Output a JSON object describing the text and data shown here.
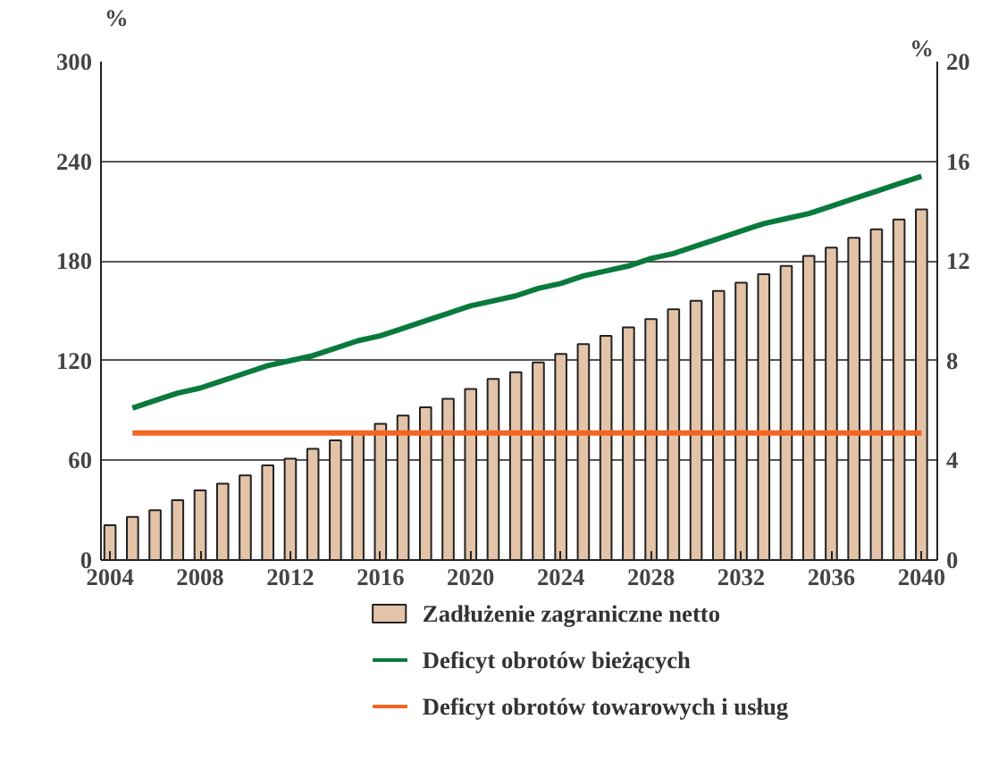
{
  "chart_data": {
    "type": "bar",
    "ylabel": "%",
    "y2label": "%",
    "x": [
      2004,
      2005,
      2006,
      2007,
      2008,
      2009,
      2010,
      2011,
      2012,
      2013,
      2014,
      2015,
      2016,
      2017,
      2018,
      2019,
      2020,
      2021,
      2022,
      2023,
      2024,
      2025,
      2026,
      2027,
      2028,
      2029,
      2030,
      2031,
      2032,
      2033,
      2034,
      2035,
      2036,
      2037,
      2038,
      2039,
      2040
    ],
    "xlim": [
      2003.6,
      2040.7
    ],
    "xticks": [
      2004,
      2008,
      2012,
      2016,
      2020,
      2024,
      2028,
      2032,
      2036,
      2040
    ],
    "ylim": [
      0,
      300
    ],
    "yticks": [
      0,
      60,
      120,
      180,
      240,
      300
    ],
    "y2lim": [
      0,
      20
    ],
    "y2ticks": [
      0,
      4,
      8,
      12,
      16,
      20
    ],
    "grid": "y",
    "legend": "bottom",
    "series": [
      {
        "name": "Zadłużenie zagraniczne netto",
        "color": "#e3c4a8",
        "values": [
          21,
          26,
          30,
          36,
          42,
          46,
          51,
          57,
          61,
          67,
          72,
          77,
          82,
          87,
          92,
          97,
          103,
          109,
          113,
          119,
          124,
          130,
          135,
          140,
          145,
          151,
          156,
          162,
          167,
          172,
          177,
          183,
          188,
          194,
          199,
          205,
          211
        ]
      },
      {
        "type": "line",
        "axis": "y2",
        "name": "Deficyt obrotów bieżących",
        "color": "#0a7a3c",
        "x": [
          2005,
          2006,
          2007,
          2008,
          2009,
          2010,
          2011,
          2012,
          2013,
          2014,
          2015,
          2016,
          2017,
          2018,
          2019,
          2020,
          2021,
          2022,
          2023,
          2024,
          2025,
          2026,
          2027,
          2028,
          2029,
          2030,
          2031,
          2032,
          2033,
          2034,
          2035,
          2036,
          2037,
          2038,
          2039,
          2040
        ],
        "values": [
          6.1,
          6.4,
          6.7,
          6.9,
          7.2,
          7.5,
          7.8,
          8.0,
          8.2,
          8.5,
          8.8,
          9.0,
          9.3,
          9.6,
          9.9,
          10.2,
          10.4,
          10.6,
          10.9,
          11.1,
          11.4,
          11.6,
          11.8,
          12.1,
          12.3,
          12.6,
          12.9,
          13.2,
          13.5,
          13.7,
          13.9,
          14.2,
          14.5,
          14.8,
          15.1,
          15.4
        ]
      },
      {
        "type": "line",
        "axis": "y2",
        "name": "Deficyt obrotów towarowych i usług",
        "color": "#f26522",
        "x": [
          2005,
          2040
        ],
        "values": [
          5.1,
          5.1
        ]
      }
    ]
  }
}
